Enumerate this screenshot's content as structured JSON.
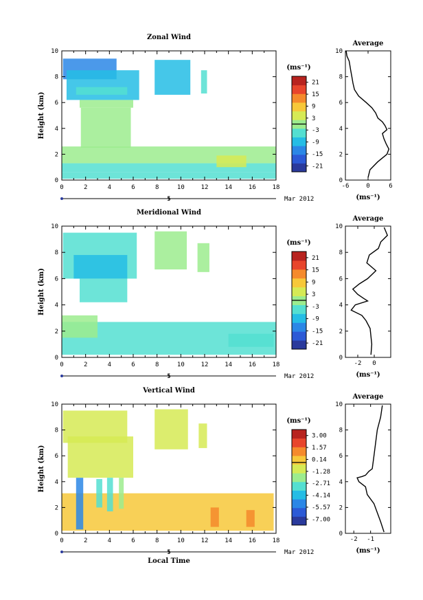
{
  "chart_data": [
    {
      "type": "heatmap",
      "title": "Zonal Wind",
      "ylabel": "Height (km)",
      "ylim": [
        0,
        10
      ],
      "xlim": [
        0,
        18
      ],
      "xticks": [
        "0",
        "2",
        "4",
        "6",
        "8",
        "10",
        "12",
        "14",
        "16",
        "18"
      ],
      "yticks": [
        "0",
        "2",
        "4",
        "6",
        "8",
        "10"
      ],
      "date_label": "5",
      "date_suffix": "Mar 2012",
      "colorbar": {
        "unit": "(ms⁻¹)",
        "ticks": [
          "21",
          "15",
          "9",
          "3",
          "-3",
          "-9",
          "-15",
          "-21"
        ],
        "range": [
          -24,
          24
        ]
      },
      "regions": [
        {
          "x": [
            0.1,
            4.6
          ],
          "y": [
            7.8,
            9.4
          ],
          "v": -15
        },
        {
          "x": [
            0.4,
            6.5
          ],
          "y": [
            6.2,
            8.5
          ],
          "v": -9
        },
        {
          "x": [
            1.2,
            5.5
          ],
          "y": [
            6.6,
            7.2
          ],
          "v": -3
        },
        {
          "x": [
            1.5,
            6.0
          ],
          "y": [
            5.6,
            6.2
          ],
          "v": -2
        },
        {
          "x": [
            1.6,
            5.8
          ],
          "y": [
            2.5,
            5.6
          ],
          "v": 1
        },
        {
          "x": [
            7.8,
            10.8
          ],
          "y": [
            6.6,
            9.3
          ],
          "v": -7
        },
        {
          "x": [
            11.7,
            12.2
          ],
          "y": [
            6.7,
            8.5
          ],
          "v": -6
        },
        {
          "x": [
            0.0,
            18.0
          ],
          "y": [
            1.3,
            2.6
          ],
          "v": 0
        },
        {
          "x": [
            0.0,
            18.0
          ],
          "y": [
            0.6,
            1.3
          ],
          "v": -3
        },
        {
          "x": [
            13.0,
            15.5
          ],
          "y": [
            1.0,
            1.9
          ],
          "v": 4
        },
        {
          "x": [
            0.0,
            18.0
          ],
          "y": [
            0.1,
            0.6
          ],
          "v": -4
        }
      ],
      "profile": {
        "title": "Average",
        "xlabel": "(ms⁻¹)",
        "xlim": [
          -6,
          6
        ],
        "ylim": [
          0,
          10
        ],
        "xticks": [
          "-6",
          "0",
          "6"
        ],
        "yticks": [
          "0",
          "2",
          "4",
          "6",
          "8",
          "10"
        ],
        "x": [
          -5.8,
          -5.6,
          -5.0,
          -4.6,
          -4.3,
          -4.0,
          -3.6,
          -2.5,
          -0.5,
          1.0,
          2.0,
          2.6,
          3.8,
          4.5,
          5.0,
          3.8,
          4.2,
          4.8,
          5.5,
          5.0,
          2.5,
          0.5,
          0.0
        ],
        "y": [
          10,
          9.6,
          9.2,
          8.5,
          8.0,
          7.5,
          7.0,
          6.5,
          6.0,
          5.6,
          5.2,
          4.8,
          4.5,
          4.2,
          3.9,
          3.6,
          3.2,
          2.8,
          2.4,
          2.0,
          1.4,
          0.8,
          0.2
        ]
      }
    },
    {
      "type": "heatmap",
      "title": "Meridional Wind",
      "ylabel": "Height (km)",
      "ylim": [
        0,
        10
      ],
      "xlim": [
        0,
        18
      ],
      "xticks": [
        "0",
        "2",
        "4",
        "6",
        "8",
        "10",
        "12",
        "14",
        "16",
        "18"
      ],
      "yticks": [
        "0",
        "2",
        "4",
        "6",
        "8",
        "10"
      ],
      "date_label": "5",
      "date_suffix": "Mar 2012",
      "colorbar": {
        "unit": "(ms⁻¹)",
        "ticks": [
          "21",
          "15",
          "9",
          "3",
          "-3",
          "-9",
          "-15",
          "-21"
        ],
        "range": [
          -24,
          24
        ]
      },
      "regions": [
        {
          "x": [
            0.1,
            6.3
          ],
          "y": [
            6.0,
            9.5
          ],
          "v": -3
        },
        {
          "x": [
            1.0,
            5.5
          ],
          "y": [
            6.0,
            7.8
          ],
          "v": -7
        },
        {
          "x": [
            1.5,
            5.5
          ],
          "y": [
            4.2,
            6.0
          ],
          "v": -6
        },
        {
          "x": [
            7.8,
            10.5
          ],
          "y": [
            6.7,
            9.6
          ],
          "v": -2
        },
        {
          "x": [
            11.4,
            12.4
          ],
          "y": [
            6.5,
            8.7
          ],
          "v": -2
        },
        {
          "x": [
            0.0,
            18.0
          ],
          "y": [
            0.2,
            2.7
          ],
          "v": -6
        },
        {
          "x": [
            0.0,
            3.0
          ],
          "y": [
            1.5,
            3.2
          ],
          "v": -2
        },
        {
          "x": [
            14.0,
            17.8
          ],
          "y": [
            0.8,
            1.8
          ],
          "v": -5
        }
      ],
      "profile": {
        "title": "Average",
        "xlabel": "(ms⁻¹)",
        "xlim": [
          -3.5,
          2
        ],
        "ylim": [
          0,
          10
        ],
        "xticks": [
          "-2",
          "0"
        ],
        "yticks": [
          "0",
          "2",
          "4",
          "6",
          "8",
          "10"
        ],
        "x": [
          1.2,
          1.6,
          0.8,
          0.5,
          -0.6,
          -0.9,
          0.2,
          -0.8,
          -1.8,
          -2.6,
          -2.0,
          -1.3,
          -0.8,
          -2.3,
          -2.8,
          -1.5,
          -1.0,
          -0.5,
          -0.4,
          -0.3,
          -0.4
        ],
        "y": [
          9.9,
          9.3,
          8.8,
          8.3,
          7.8,
          7.2,
          6.6,
          6.0,
          5.6,
          5.2,
          4.8,
          4.5,
          4.3,
          4.0,
          3.6,
          3.2,
          2.8,
          2.2,
          1.6,
          1.0,
          0.2
        ]
      }
    },
    {
      "type": "heatmap",
      "title": "Vertical Wind",
      "xlabel": "Local Time",
      "ylabel": "Height (km)",
      "ylim": [
        0,
        10
      ],
      "xlim": [
        0,
        18
      ],
      "xticks": [
        "0",
        "2",
        "4",
        "6",
        "8",
        "10",
        "12",
        "14",
        "16",
        "18"
      ],
      "yticks": [
        "0",
        "2",
        "4",
        "6",
        "8",
        "10"
      ],
      "date_label": "5",
      "date_suffix": "Mar 2012",
      "colorbar": {
        "unit": "(ms⁻¹)",
        "ticks": [
          "3.00",
          "1.57",
          "0.14",
          "-1.28",
          "-2.71",
          "-4.14",
          "-5.57",
          "-7.00"
        ],
        "range": [
          -8.43,
          4.43
        ]
      },
      "regions": [
        {
          "x": [
            0.1,
            5.5
          ],
          "y": [
            7.0,
            9.5
          ],
          "v": -0.3
        },
        {
          "x": [
            0.5,
            6.0
          ],
          "y": [
            4.3,
            7.5
          ],
          "v": -0.5
        },
        {
          "x": [
            7.8,
            10.6
          ],
          "y": [
            6.5,
            9.6
          ],
          "v": -0.3
        },
        {
          "x": [
            11.5,
            12.2
          ],
          "y": [
            6.6,
            8.5
          ],
          "v": -0.5
        },
        {
          "x": [
            0.0,
            17.8
          ],
          "y": [
            0.2,
            3.1
          ],
          "v": -0.1
        },
        {
          "x": [
            1.2,
            1.8
          ],
          "y": [
            0.3,
            4.3
          ],
          "v": -6.0
        },
        {
          "x": [
            2.9,
            3.4
          ],
          "y": [
            2.0,
            4.2
          ],
          "v": -2.8
        },
        {
          "x": [
            3.8,
            4.3
          ],
          "y": [
            1.7,
            4.3
          ],
          "v": -2.6
        },
        {
          "x": [
            4.8,
            5.2
          ],
          "y": [
            1.9,
            4.3
          ],
          "v": -2.4
        },
        {
          "x": [
            12.5,
            13.2
          ],
          "y": [
            0.5,
            2.0
          ],
          "v": 1.4
        },
        {
          "x": [
            15.5,
            16.2
          ],
          "y": [
            0.5,
            1.8
          ],
          "v": 1.1
        }
      ],
      "profile": {
        "title": "Average",
        "xlabel": "(ms⁻¹)",
        "xlim": [
          -2.5,
          0.2
        ],
        "ylim": [
          0,
          10
        ],
        "xticks": [
          "-2",
          "-1"
        ],
        "yticks": [
          "0",
          "2",
          "4",
          "6",
          "8",
          "10"
        ],
        "x": [
          -0.3,
          -0.4,
          -0.6,
          -0.7,
          -0.8,
          -0.9,
          -1.1,
          -1.3,
          -1.5,
          -1.8,
          -1.7,
          -1.3,
          -1.2,
          -0.8,
          -0.6,
          -0.4,
          -0.2
        ],
        "y": [
          9.9,
          9.0,
          8.0,
          7.0,
          6.0,
          5.0,
          4.8,
          4.5,
          4.4,
          4.3,
          4.0,
          3.6,
          3.0,
          2.3,
          1.6,
          0.9,
          0.1
        ]
      }
    }
  ]
}
